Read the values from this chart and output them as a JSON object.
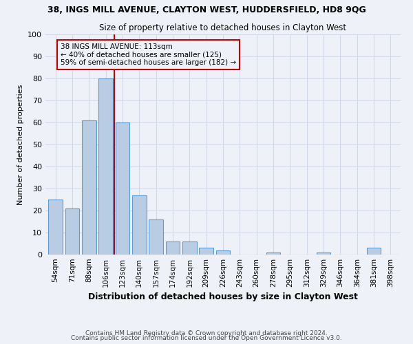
{
  "title": "38, INGS MILL AVENUE, CLAYTON WEST, HUDDERSFIELD, HD8 9QG",
  "subtitle": "Size of property relative to detached houses in Clayton West",
  "xlabel": "Distribution of detached houses by size in Clayton West",
  "ylabel": "Number of detached properties",
  "footnote1": "Contains HM Land Registry data © Crown copyright and database right 2024.",
  "footnote2": "Contains public sector information licensed under the Open Government Licence v3.0.",
  "categories": [
    "54sqm",
    "71sqm",
    "88sqm",
    "106sqm",
    "123sqm",
    "140sqm",
    "157sqm",
    "174sqm",
    "192sqm",
    "209sqm",
    "226sqm",
    "243sqm",
    "260sqm",
    "278sqm",
    "295sqm",
    "312sqm",
    "329sqm",
    "346sqm",
    "364sqm",
    "381sqm",
    "398sqm"
  ],
  "values": [
    25,
    21,
    61,
    80,
    60,
    27,
    16,
    6,
    6,
    3,
    2,
    0,
    0,
    1,
    0,
    0,
    1,
    0,
    0,
    3,
    0
  ],
  "bar_color": "#b8cce4",
  "bar_edge_color": "#5b9bd5",
  "grid_color": "#d0d8e8",
  "background_color": "#eef2f8",
  "property_line_x": 3.5,
  "annotation_text": "38 INGS MILL AVENUE: 113sqm\n← 40% of detached houses are smaller (125)\n59% of semi-detached houses are larger (182) →",
  "annotation_box_color": "#cc0000",
  "ylim": [
    0,
    100
  ],
  "yticks": [
    0,
    10,
    20,
    30,
    40,
    50,
    60,
    70,
    80,
    90,
    100
  ]
}
